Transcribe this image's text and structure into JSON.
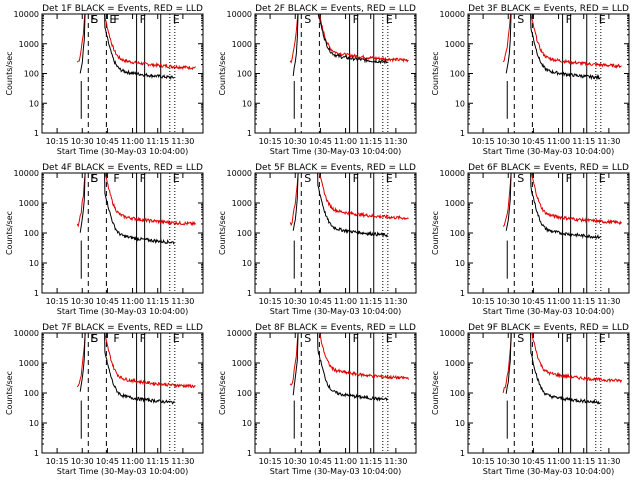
{
  "chart_data": {
    "type": "line",
    "grid": false,
    "panels": [
      {
        "title": "Det 1F BLACK = Events, RED = LLD",
        "xlabel": "Start Time (30-May-03 10:04:00)",
        "ylabel": "Counts/sec",
        "red_base": 140,
        "black_base": 60,
        "red_pre": 240,
        "black_pre": 140,
        "markers": [
          {
            "label": "E",
            "t": 10.55
          },
          {
            "label": "S",
            "t": 10.56
          },
          {
            "label": "E",
            "t": 10.74
          },
          {
            "label": "F",
            "t": 10.78
          },
          {
            "label": "F",
            "t": 11.04
          },
          {
            "label": "E",
            "t": 11.37
          }
        ]
      },
      {
        "title": "Det 2F BLACK = Events, RED = LLD",
        "xlabel": "Start Time (30-May-03 10:04:00)",
        "ylabel": "Counts/sec",
        "red_base": 250,
        "black_base": 200,
        "red_pre": 260,
        "black_pre": 140,
        "markers": [
          {
            "label": "S",
            "t": 10.56
          },
          {
            "label": "F",
            "t": 11.04
          },
          {
            "label": "E",
            "t": 11.37
          }
        ]
      },
      {
        "title": "Det 3F BLACK = Events, RED = LLD",
        "xlabel": "Start Time (30-May-03 10:04:00)",
        "ylabel": "Counts/sec",
        "red_base": 160,
        "black_base": 60,
        "red_pre": 300,
        "black_pre": 140,
        "markers": [
          {
            "label": "S",
            "t": 10.56
          },
          {
            "label": "F",
            "t": 11.04
          },
          {
            "label": "E",
            "t": 11.37
          }
        ]
      },
      {
        "title": "Det 4F BLACK = Events, RED = LLD",
        "xlabel": "Start Time (30-May-03 10:04:00)",
        "ylabel": "Counts/sec",
        "red_base": 180,
        "black_base": 40,
        "red_pre": 200,
        "black_pre": 140,
        "markers": [
          {
            "label": "E",
            "t": 10.55
          },
          {
            "label": "S",
            "t": 10.56
          },
          {
            "label": "F",
            "t": 10.78
          },
          {
            "label": "F",
            "t": 11.04
          },
          {
            "label": "E",
            "t": 11.37
          }
        ]
      },
      {
        "title": "Det 5F BLACK = Events, RED = LLD",
        "xlabel": "Start Time (30-May-03 10:04:00)",
        "ylabel": "Counts/sec",
        "red_base": 280,
        "black_base": 70,
        "red_pre": 210,
        "black_pre": 140,
        "markers": [
          {
            "label": "S",
            "t": 10.56
          },
          {
            "label": "F",
            "t": 11.04
          },
          {
            "label": "E",
            "t": 11.37
          }
        ]
      },
      {
        "title": "Det 6F BLACK = Events, RED = LLD",
        "xlabel": "Start Time (30-May-03 10:04:00)",
        "ylabel": "Counts/sec",
        "red_base": 200,
        "black_base": 60,
        "red_pre": 160,
        "black_pre": 140,
        "markers": [
          {
            "label": "S",
            "t": 10.56
          },
          {
            "label": "F",
            "t": 11.04
          },
          {
            "label": "E",
            "t": 11.37
          }
        ]
      },
      {
        "title": "Det 7F BLACK = Events, RED = LLD",
        "xlabel": "Start Time (30-May-03 10:04:00)",
        "ylabel": "Counts/sec",
        "red_base": 150,
        "black_base": 40,
        "red_pre": 160,
        "black_pre": 140,
        "markers": [
          {
            "label": "E",
            "t": 10.55
          },
          {
            "label": "S",
            "t": 10.56
          },
          {
            "label": "F",
            "t": 10.78
          },
          {
            "label": "F",
            "t": 11.04
          },
          {
            "label": "E",
            "t": 11.37
          }
        ]
      },
      {
        "title": "Det 8F BLACK = Events, RED = LLD",
        "xlabel": "Start Time (30-May-03 10:04:00)",
        "ylabel": "Counts/sec",
        "red_base": 280,
        "black_base": 50,
        "red_pre": 200,
        "black_pre": 140,
        "markers": [
          {
            "label": "S",
            "t": 10.56
          },
          {
            "label": "F",
            "t": 11.04
          },
          {
            "label": "E",
            "t": 11.37
          }
        ]
      },
      {
        "title": "Det 9F BLACK = Events, RED = LLD",
        "xlabel": "Start Time (30-May-03 10:04:00)",
        "ylabel": "Counts/sec",
        "red_base": 230,
        "black_base": 40,
        "red_pre": 120,
        "black_pre": 140,
        "markers": [
          {
            "label": "S",
            "t": 10.56
          },
          {
            "label": "F",
            "t": 11.04
          },
          {
            "label": "E",
            "t": 11.37
          }
        ]
      }
    ],
    "x_axis": {
      "range_hours": [
        10.1,
        11.7
      ],
      "tick_values": [
        10.25,
        10.5,
        10.75,
        11.0,
        11.25,
        11.5
      ],
      "tick_labels": [
        "10:15",
        "10:30",
        "10:45",
        "11:00",
        "11:15",
        "11:30"
      ]
    },
    "y_axis": {
      "scale": "log",
      "range": [
        1,
        10000
      ],
      "tick_values": [
        1,
        10,
        100,
        1000,
        10000
      ],
      "tick_labels": [
        "1",
        "10",
        "100",
        "1000",
        "10000"
      ]
    },
    "series": [
      {
        "name": "Events",
        "color": "#000000"
      },
      {
        "name": "LLD",
        "color": "#e00000"
      }
    ],
    "reference_lines": [
      {
        "t": 10.56,
        "style": "dashed"
      },
      {
        "t": 10.74,
        "style": "dashed"
      },
      {
        "t": 11.04,
        "style": "solid"
      },
      {
        "t": 11.12,
        "style": "solid"
      },
      {
        "t": 11.28,
        "style": "solid"
      },
      {
        "t": 11.37,
        "style": "dotted"
      },
      {
        "t": 11.42,
        "style": "dotted"
      }
    ],
    "flare": {
      "t_start": 10.45,
      "peak_start": 10.53,
      "peak_end": 10.72,
      "black_start": 10.48,
      "black_end": 11.42,
      "red_end": 11.63
    }
  }
}
